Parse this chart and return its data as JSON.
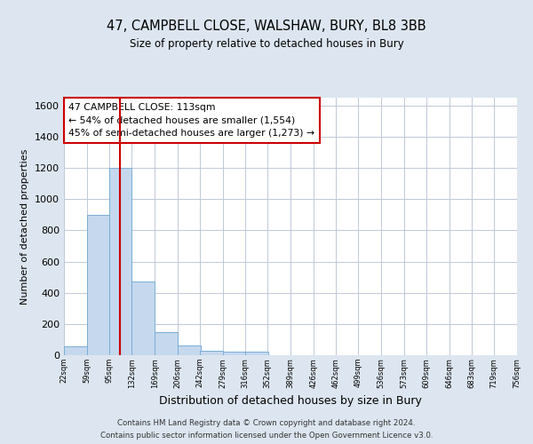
{
  "title1": "47, CAMPBELL CLOSE, WALSHAW, BURY, BL8 3BB",
  "title2": "Size of property relative to detached houses in Bury",
  "xlabel": "Distribution of detached houses by size in Bury",
  "ylabel": "Number of detached properties",
  "bin_edges": [
    22,
    59,
    95,
    132,
    169,
    206,
    242,
    279,
    316,
    352,
    389,
    426,
    462,
    499,
    536,
    573,
    609,
    646,
    683,
    719,
    756
  ],
  "bar_heights": [
    55,
    900,
    1200,
    470,
    150,
    60,
    30,
    20,
    20,
    0,
    0,
    0,
    0,
    0,
    0,
    0,
    0,
    0,
    0,
    0
  ],
  "bar_color": "#c5d8ee",
  "bar_edge_color": "#7aaed4",
  "property_size": 113,
  "vline_color": "#cc0000",
  "annotation_text": "47 CAMPBELL CLOSE: 113sqm\n← 54% of detached houses are smaller (1,554)\n45% of semi-detached houses are larger (1,273) →",
  "annotation_box_edgecolor": "#cc0000",
  "footer1": "Contains HM Land Registry data © Crown copyright and database right 2024.",
  "footer2": "Contains public sector information licensed under the Open Government Licence v3.0.",
  "ylim": [
    0,
    1650
  ],
  "fig_bg_color": "#dde6f0",
  "plot_bg_color": "#ffffff",
  "tick_labels": [
    "22sqm",
    "59sqm",
    "95sqm",
    "132sqm",
    "169sqm",
    "206sqm",
    "242sqm",
    "279sqm",
    "316sqm",
    "352sqm",
    "389sqm",
    "426sqm",
    "462sqm",
    "499sqm",
    "536sqm",
    "573sqm",
    "609sqm",
    "646sqm",
    "683sqm",
    "719sqm",
    "756sqm"
  ]
}
